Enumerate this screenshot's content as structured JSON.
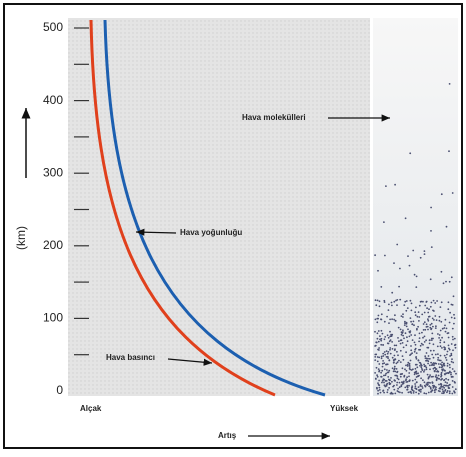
{
  "y_axis": {
    "label": "(km)",
    "ticks": [
      "500",
      "400",
      "300",
      "200",
      "100",
      "0"
    ]
  },
  "x_axis": {
    "low": "Alçak",
    "high": "Yüksek",
    "label": "Artış"
  },
  "annotations": {
    "density": "Hava yoğunluğu",
    "pressure": "Hava basıncı",
    "molecules": "Hava molekülleri"
  }
}
